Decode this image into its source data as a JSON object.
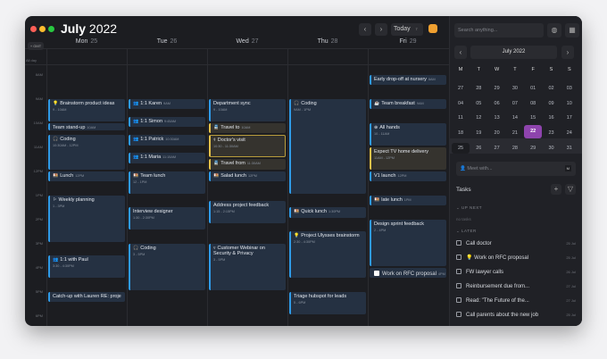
{
  "window": {
    "title_month": "July",
    "title_year": "2022",
    "tz_button": "+ GMT",
    "all_day": "All day",
    "nav_prev": "‹",
    "nav_next": "›",
    "today": "Today",
    "today_shortcut": "T",
    "accent_color": "#f0a030"
  },
  "days": [
    {
      "name": "Mon",
      "num": "25"
    },
    {
      "name": "Tue",
      "num": "26"
    },
    {
      "name": "Wed",
      "num": "27"
    },
    {
      "name": "Thu",
      "num": "28"
    },
    {
      "name": "Fri",
      "num": "29"
    }
  ],
  "hours": [
    "8AM",
    "9AM",
    "10AM",
    "11AM",
    "12PM",
    "1PM",
    "2PM",
    "3PM",
    "4PM",
    "5PM",
    "6PM"
  ],
  "events": [
    {
      "day": 0,
      "start": 9,
      "end": 10,
      "icon": "💡",
      "title": "Brainstorm product ideas",
      "time": "9 - 10AM",
      "mode": "sub"
    },
    {
      "day": 0,
      "start": 10,
      "end": 10.3,
      "title": "Team stand-up",
      "time": "10AM",
      "mode": "inline"
    },
    {
      "day": 0,
      "start": 10.5,
      "end": 12,
      "icon": "🎧",
      "title": "Coding",
      "time": "10:30AM - 12PM",
      "mode": "sub"
    },
    {
      "day": 0,
      "start": 12,
      "end": 12.5,
      "icon": "🍱",
      "title": "Lunch",
      "time": "12PM",
      "mode": "inline"
    },
    {
      "day": 0,
      "start": 13,
      "end": 15,
      "icon": "⚐",
      "title": "Weekly planning",
      "time": "1 - 3PM",
      "mode": "sub"
    },
    {
      "day": 0,
      "start": 15.5,
      "end": 16.5,
      "icon": "👥",
      "title": "1:1 with Paul",
      "time": "3:30 - 4:30PM",
      "mode": "sub"
    },
    {
      "day": 0,
      "start": 17,
      "end": 17.5,
      "title": "Catch-up with Lauren RE: proje",
      "time": "",
      "mode": "inline"
    },
    {
      "day": 1,
      "start": 9,
      "end": 9.5,
      "icon": "👥",
      "title": "1:1 Karen",
      "time": "9AM",
      "mode": "inline"
    },
    {
      "day": 1,
      "start": 9.75,
      "end": 10.25,
      "icon": "👥",
      "title": "1:1 Simon",
      "time": "9:45AM",
      "mode": "inline"
    },
    {
      "day": 1,
      "start": 10.5,
      "end": 11,
      "icon": "👥",
      "title": "1:1 Patrick",
      "time": "10:30AM",
      "mode": "inline"
    },
    {
      "day": 1,
      "start": 11.25,
      "end": 11.75,
      "icon": "👥",
      "title": "1:1 Maria",
      "time": "11:15AM",
      "mode": "inline"
    },
    {
      "day": 1,
      "start": 12,
      "end": 13,
      "icon": "🍱",
      "title": "Team lunch",
      "time": "12 - 1PM",
      "mode": "sub"
    },
    {
      "day": 1,
      "start": 13.5,
      "end": 14.5,
      "title": "Interview designer",
      "time": "1:30 - 2:30PM",
      "mode": "sub"
    },
    {
      "day": 1,
      "start": 15,
      "end": 17,
      "icon": "🎧",
      "title": "Coding",
      "time": "3 - 5PM",
      "mode": "sub"
    },
    {
      "day": 2,
      "start": 9,
      "end": 10,
      "title": "Department sync",
      "time": "9 - 10AM",
      "mode": "sub"
    },
    {
      "day": 2,
      "start": 10,
      "end": 10.5,
      "icon": "🚆",
      "title": "Travel to",
      "time": "10AM",
      "mode": "inline",
      "kind": "y"
    },
    {
      "day": 2,
      "start": 10.5,
      "end": 11.5,
      "icon": "⚕",
      "title": "Doctor's visit",
      "time": "10:30 - 11:30AM",
      "mode": "sub",
      "kind": "y sel"
    },
    {
      "day": 2,
      "start": 11.5,
      "end": 12,
      "icon": "🚆",
      "title": "Travel from",
      "time": "11:30AM",
      "mode": "inline",
      "kind": "y"
    },
    {
      "day": 2,
      "start": 12,
      "end": 12.5,
      "icon": "🍱",
      "title": "Salad lunch",
      "time": "12PM",
      "mode": "inline"
    },
    {
      "day": 2,
      "start": 13.25,
      "end": 14.25,
      "title": "Address project feedback",
      "time": "1:15 - 2:15PM",
      "mode": "sub"
    },
    {
      "day": 2,
      "start": 15,
      "end": 17,
      "icon": "▿",
      "title": "Customer Webinar on Security & Privacy",
      "time": "3 - 5PM",
      "mode": "sub",
      "wrap": true
    },
    {
      "day": 3,
      "start": 9,
      "end": 13,
      "icon": "🎧",
      "title": "Coding",
      "time": "9AM - 1PM",
      "mode": "sub"
    },
    {
      "day": 3,
      "start": 13.5,
      "end": 14,
      "icon": "🍱",
      "title": "Quick lunch",
      "time": "1:30PM",
      "mode": "inline"
    },
    {
      "day": 3,
      "start": 14.5,
      "end": 16.5,
      "icon": "💡",
      "title": "Project Ulysses brainstorm",
      "time": "2:30 - 4:30PM",
      "mode": "sub"
    },
    {
      "day": 3,
      "start": 17,
      "end": 18,
      "title": "Triage hubspot for leads",
      "time": "5 - 6PM",
      "mode": "sub"
    },
    {
      "day": 4,
      "start": 8,
      "end": 8.5,
      "title": "Early drop-off at nursery",
      "time": "8AM",
      "mode": "inline"
    },
    {
      "day": 4,
      "start": 9,
      "end": 9.5,
      "icon": "☕",
      "title": "Team breakfast",
      "time": "9AM",
      "mode": "inline"
    },
    {
      "day": 4,
      "start": 10,
      "end": 11,
      "icon": "⊕",
      "title": "All hands",
      "time": "10 - 11AM",
      "mode": "sub"
    },
    {
      "day": 4,
      "start": 11,
      "end": 12,
      "title": "Expect TV home delivery",
      "time": "11AM - 12PM",
      "mode": "sub",
      "kind": "y"
    },
    {
      "day": 4,
      "start": 12,
      "end": 12.5,
      "title": "V1 launch",
      "time": "12PM",
      "mode": "inline"
    },
    {
      "day": 4,
      "start": 13,
      "end": 13.5,
      "icon": "🍱",
      "title": "late lunch",
      "time": "1PM",
      "mode": "inline"
    },
    {
      "day": 4,
      "start": 14,
      "end": 16,
      "title": "Design sprint feedback",
      "time": "2 - 4PM",
      "mode": "sub"
    },
    {
      "day": 4,
      "start": 16,
      "end": 16.5,
      "icon": "☐",
      "title": "Work on RFC proposal",
      "time": "4PM",
      "mode": "inline",
      "kind": "task"
    }
  ],
  "sidebar": {
    "search_placeholder": "Search anything...",
    "month_label": "July 2022",
    "prev": "‹",
    "next": "›",
    "weekdays": [
      "M",
      "T",
      "W",
      "T",
      "F",
      "S",
      "S"
    ],
    "weeks": [
      [
        "27",
        "28",
        "29",
        "30",
        "01",
        "02",
        "03"
      ],
      [
        "04",
        "05",
        "06",
        "07",
        "08",
        "09",
        "10"
      ],
      [
        "11",
        "12",
        "13",
        "14",
        "15",
        "16",
        "17"
      ],
      [
        "18",
        "19",
        "20",
        "21",
        "22",
        "23",
        "24"
      ],
      [
        "25",
        "26",
        "27",
        "28",
        "29",
        "30",
        "31"
      ]
    ],
    "today": "22",
    "today_color": "#8e44ad",
    "meet_placeholder": "Meet with...",
    "meet_shortcut": "M",
    "tasks_title": "Tasks",
    "add": "+",
    "filter": "▽",
    "up_next": "UP NEXT",
    "no_tasks": "no tasks",
    "later": "LATER",
    "tasks": [
      {
        "label": "Call doctor",
        "date": "25 Jul"
      },
      {
        "label": "💡 Work on RFC proposal",
        "date": "25 Jul"
      },
      {
        "label": "FW lawyer calls",
        "date": "26 Jul"
      },
      {
        "label": "Reinbursement due from...",
        "date": "27 Jul"
      },
      {
        "label": "Read: \"The Future of the...",
        "date": "27 Jul"
      },
      {
        "label": "Call parents about the new job",
        "date": "25 Jul"
      }
    ]
  }
}
